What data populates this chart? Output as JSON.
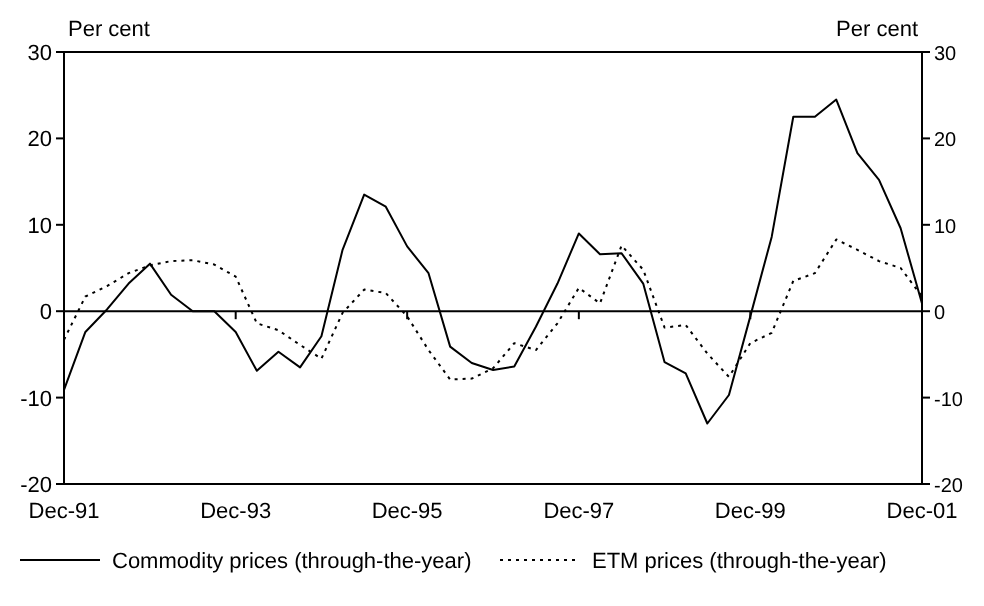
{
  "chart_data": {
    "type": "line",
    "ylabel": "Per cent",
    "y2label": "Per cent",
    "x": [
      "1991-12",
      "1992-03",
      "1992-06",
      "1992-09",
      "1992-12",
      "1993-03",
      "1993-06",
      "1993-09",
      "1993-12",
      "1994-03",
      "1994-06",
      "1994-09",
      "1994-12",
      "1995-03",
      "1995-06",
      "1995-09",
      "1995-12",
      "1996-03",
      "1996-06",
      "1996-09",
      "1996-12",
      "1997-03",
      "1997-06",
      "1997-09",
      "1997-12",
      "1998-03",
      "1998-06",
      "1998-09",
      "1998-12",
      "1999-03",
      "1999-06",
      "1999-09",
      "1999-12",
      "2000-03",
      "2000-06",
      "2000-09",
      "2000-12",
      "2001-03",
      "2001-06",
      "2001-09",
      "2001-12"
    ],
    "series": [
      {
        "name": "Commodity prices (through-the-year)",
        "color": "#000000",
        "line_style": "solid",
        "values": [
          -9.1,
          -2.4,
          0.2,
          3.2,
          5.5,
          1.9,
          0,
          0,
          -2.4,
          -6.9,
          -4.7,
          -6.5,
          -2.9,
          7.1,
          13.5,
          12.1,
          7.5,
          4.4,
          -4.1,
          -6,
          -6.8,
          -6.4,
          -1.8,
          3.2,
          9,
          6.6,
          6.7,
          3.2,
          -5.9,
          -7.2,
          -13,
          -9.7,
          -0.6,
          8.6,
          22.5,
          22.5,
          24.5,
          18.3,
          15.2,
          9.6,
          0.9
        ]
      },
      {
        "name": "ETM prices (through-the-year)",
        "color": "#000000",
        "line_style": "dotted",
        "values": [
          -3.3,
          1.7,
          2.9,
          4.4,
          5.3,
          5.8,
          5.9,
          5.4,
          4,
          -1.4,
          -2.2,
          -3.9,
          -5.5,
          -0.2,
          2.5,
          2.1,
          -0.6,
          -4.5,
          -7.9,
          -7.8,
          -6.6,
          -3.7,
          -4.5,
          -1.4,
          2.7,
          0.9,
          7.6,
          4.8,
          -1.9,
          -1.6,
          -4.9,
          -7.6,
          -3.7,
          -2.5,
          3.5,
          4.4,
          8.3,
          7.1,
          5.8,
          5,
          1.7
        ]
      }
    ],
    "xlim": [
      "1991-12",
      "2001-12"
    ],
    "xticks": [
      {
        "value": "1991-12",
        "label": "Dec-91"
      },
      {
        "value": "1993-12",
        "label": "Dec-93"
      },
      {
        "value": "1995-12",
        "label": "Dec-95"
      },
      {
        "value": "1997-12",
        "label": "Dec-97"
      },
      {
        "value": "1999-12",
        "label": "Dec-99"
      },
      {
        "value": "2001-12",
        "label": "Dec-01"
      }
    ],
    "ylim": [
      -20,
      30
    ],
    "yticks": [
      -20,
      -10,
      0,
      10,
      20,
      30
    ],
    "y2lim": [
      -20,
      30
    ],
    "y2ticks": [
      -20,
      -10,
      0,
      10,
      20,
      30
    ],
    "ref_lines": [
      {
        "axis": "y",
        "value": 0,
        "color": "#000000"
      }
    ],
    "grid": false,
    "legend": "bottom"
  }
}
